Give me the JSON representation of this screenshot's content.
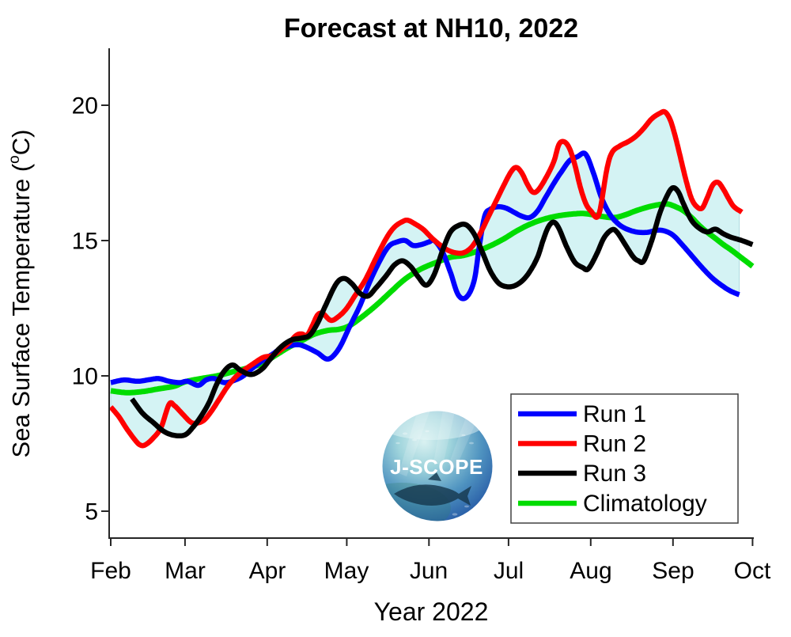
{
  "title": "Forecast at NH10, 2022",
  "legend": {
    "items": [
      {
        "label": "Run 1",
        "color": "#0000FF"
      },
      {
        "label": "Run 2",
        "color": "#FF0000"
      },
      {
        "label": "Run 3",
        "color": "#000000"
      },
      {
        "label": "Climatology",
        "color": "#00DC00"
      }
    ]
  },
  "logo": {
    "text": "J-SCOPE"
  },
  "chart_data": {
    "type": "line",
    "title": "Forecast at NH10, 2022",
    "xlabel": "Year 2022",
    "ylabel": "Sea Surface Temperature (°C)",
    "ylabel_parts": {
      "prefix": "Sea Surface Temperature (",
      "sup": "o",
      "suffix": "C)"
    },
    "ylim": [
      4,
      22
    ],
    "yticks": [
      5,
      10,
      15,
      20
    ],
    "x_tick_labels": [
      "Feb",
      "Mar",
      "Apr",
      "May",
      "Jun",
      "Jul",
      "Aug",
      "Sep",
      "Oct"
    ],
    "x_tick_days": [
      0,
      28,
      59,
      89,
      120,
      150,
      181,
      212,
      242
    ],
    "x_unit": "days since Feb 1, 2022",
    "grid": false,
    "legend_position": "lower right",
    "band": {
      "name": "min-max envelope of Runs 1-3",
      "color": "#D4F3F4",
      "edge_color": "#AFDCE0"
    },
    "series": [
      {
        "name": "Run 1",
        "color": "#0000FF",
        "days": [
          0,
          5,
          10,
          14,
          18,
          22,
          26,
          29,
          33,
          36,
          39,
          43,
          47,
          50,
          53,
          57,
          61,
          64,
          68,
          71,
          74,
          78,
          82,
          86,
          90,
          94,
          98,
          102,
          105,
          108,
          111,
          114,
          117,
          120,
          122,
          125,
          128,
          131,
          134,
          137,
          139,
          141,
          143,
          146,
          149,
          152,
          155,
          158,
          161,
          164,
          167,
          170,
          173,
          176,
          179,
          182,
          185,
          188,
          191,
          194,
          198,
          202,
          206,
          209,
          212,
          215,
          219,
          223,
          227,
          231,
          234,
          237
        ],
        "values": [
          9.75,
          9.85,
          9.8,
          9.85,
          9.9,
          9.8,
          9.75,
          9.8,
          9.65,
          9.85,
          9.9,
          9.75,
          9.85,
          10.0,
          10.25,
          10.55,
          10.8,
          11.0,
          11.12,
          11.15,
          11.05,
          10.85,
          10.62,
          11.0,
          11.8,
          12.6,
          13.55,
          14.35,
          14.8,
          14.95,
          15.0,
          14.82,
          14.85,
          14.95,
          15.0,
          14.6,
          13.85,
          13.0,
          12.9,
          13.5,
          14.8,
          15.9,
          16.15,
          16.25,
          16.2,
          16.05,
          15.9,
          15.85,
          16.1,
          16.6,
          17.1,
          17.55,
          17.95,
          18.1,
          18.2,
          17.5,
          16.6,
          16.0,
          15.65,
          15.45,
          15.32,
          15.3,
          15.38,
          15.35,
          15.2,
          14.9,
          14.45,
          14.0,
          13.6,
          13.3,
          13.12,
          13.0
        ]
      },
      {
        "name": "Run 2",
        "color": "#FF0000",
        "days": [
          0,
          3,
          6,
          9,
          11,
          13,
          16,
          19,
          22,
          24,
          27,
          30,
          32,
          35,
          38,
          41,
          44,
          47,
          50,
          53,
          56,
          58,
          61,
          64,
          67,
          70,
          72,
          74,
          76,
          78,
          80,
          83,
          86,
          89,
          92,
          96,
          100,
          104,
          107,
          110,
          112,
          115,
          118,
          121,
          124,
          127,
          130,
          133,
          136,
          139,
          142,
          145,
          148,
          151,
          153,
          155,
          157,
          159,
          161,
          164,
          167,
          169,
          171,
          173,
          175,
          177,
          179,
          181,
          184,
          187,
          189,
          192,
          195,
          198,
          201,
          204,
          207,
          209,
          211,
          213,
          215,
          217,
          219,
          221,
          223,
          225,
          227,
          229,
          231,
          233,
          235,
          238
        ],
        "values": [
          8.85,
          8.5,
          8.05,
          7.65,
          7.45,
          7.45,
          7.7,
          8.1,
          8.95,
          8.9,
          8.6,
          8.3,
          8.25,
          8.35,
          8.7,
          9.15,
          9.6,
          9.95,
          10.2,
          10.4,
          10.6,
          10.7,
          10.75,
          10.95,
          11.2,
          11.5,
          11.55,
          11.5,
          11.85,
          12.25,
          12.3,
          12.05,
          12.2,
          12.5,
          12.95,
          13.55,
          14.35,
          15.1,
          15.5,
          15.7,
          15.75,
          15.6,
          15.4,
          15.1,
          14.85,
          14.65,
          14.55,
          14.55,
          14.75,
          15.2,
          15.8,
          16.4,
          17.0,
          17.55,
          17.7,
          17.5,
          17.1,
          16.8,
          16.85,
          17.3,
          17.9,
          18.55,
          18.65,
          18.4,
          17.8,
          17.0,
          16.4,
          16.1,
          15.95,
          17.6,
          18.25,
          18.5,
          18.65,
          18.85,
          19.15,
          19.5,
          19.7,
          19.75,
          19.45,
          18.8,
          18.0,
          17.2,
          16.55,
          16.25,
          16.2,
          16.6,
          17.05,
          17.15,
          16.9,
          16.55,
          16.25,
          16.05
        ]
      },
      {
        "name": "Run 3",
        "color": "#000000",
        "days": [
          8,
          12,
          16,
          20,
          24,
          28,
          31,
          34,
          37,
          40,
          43,
          46,
          49,
          53,
          57,
          60,
          64,
          68,
          72,
          75,
          78,
          81,
          85,
          88,
          91,
          94,
          97,
          100,
          104,
          107,
          110,
          113,
          116,
          119,
          122,
          125,
          128,
          131,
          134,
          137,
          140,
          143,
          146,
          149,
          152,
          155,
          158,
          161,
          163,
          165,
          167,
          169,
          172,
          175,
          178,
          180,
          183,
          186,
          189,
          191,
          194,
          197,
          199,
          201,
          204,
          207,
          210,
          212,
          214,
          216,
          219,
          222,
          225,
          228,
          231,
          234,
          238,
          242
        ],
        "values": [
          9.15,
          8.62,
          8.28,
          7.95,
          7.8,
          7.82,
          8.1,
          8.5,
          9.0,
          9.7,
          10.2,
          10.4,
          10.2,
          10.05,
          10.25,
          10.6,
          11.05,
          11.32,
          11.4,
          11.5,
          11.95,
          12.6,
          13.4,
          13.6,
          13.4,
          13.05,
          12.95,
          13.25,
          13.72,
          14.1,
          14.25,
          14.05,
          13.65,
          13.35,
          13.75,
          14.6,
          15.3,
          15.55,
          15.58,
          15.25,
          14.6,
          13.9,
          13.45,
          13.3,
          13.32,
          13.5,
          13.85,
          14.4,
          15.0,
          15.5,
          15.68,
          15.45,
          14.75,
          14.2,
          14.0,
          13.95,
          14.45,
          15.1,
          15.4,
          15.3,
          14.85,
          14.4,
          14.25,
          14.25,
          15.0,
          16.0,
          16.7,
          16.95,
          16.8,
          16.35,
          15.75,
          15.45,
          15.32,
          15.42,
          15.25,
          15.12,
          15.0,
          14.85
        ]
      },
      {
        "name": "Climatology",
        "color": "#00DC00",
        "days": [
          0,
          6,
          12,
          18,
          24,
          28,
          34,
          40,
          46,
          52,
          57,
          62,
          67,
          72,
          77,
          82,
          86,
          90,
          95,
          100,
          105,
          110,
          114,
          118,
          123,
          128,
          133,
          138,
          143,
          148,
          153,
          158,
          163,
          168,
          173,
          178,
          182,
          186,
          190,
          194,
          198,
          203,
          207,
          210,
          213,
          216,
          219,
          222,
          225,
          228,
          231,
          234,
          238,
          242
        ],
        "values": [
          9.45,
          9.38,
          9.42,
          9.52,
          9.62,
          9.78,
          9.9,
          10.0,
          10.15,
          10.3,
          10.45,
          10.75,
          11.05,
          11.3,
          11.55,
          11.68,
          11.72,
          11.85,
          12.2,
          12.6,
          13.05,
          13.5,
          13.78,
          14.0,
          14.2,
          14.38,
          14.45,
          14.6,
          14.8,
          15.05,
          15.35,
          15.6,
          15.78,
          15.9,
          15.97,
          16.0,
          15.95,
          15.88,
          15.85,
          15.95,
          16.1,
          16.25,
          16.33,
          16.35,
          16.25,
          16.1,
          15.85,
          15.55,
          15.3,
          15.08,
          14.85,
          14.65,
          14.35,
          14.05
        ]
      }
    ]
  }
}
